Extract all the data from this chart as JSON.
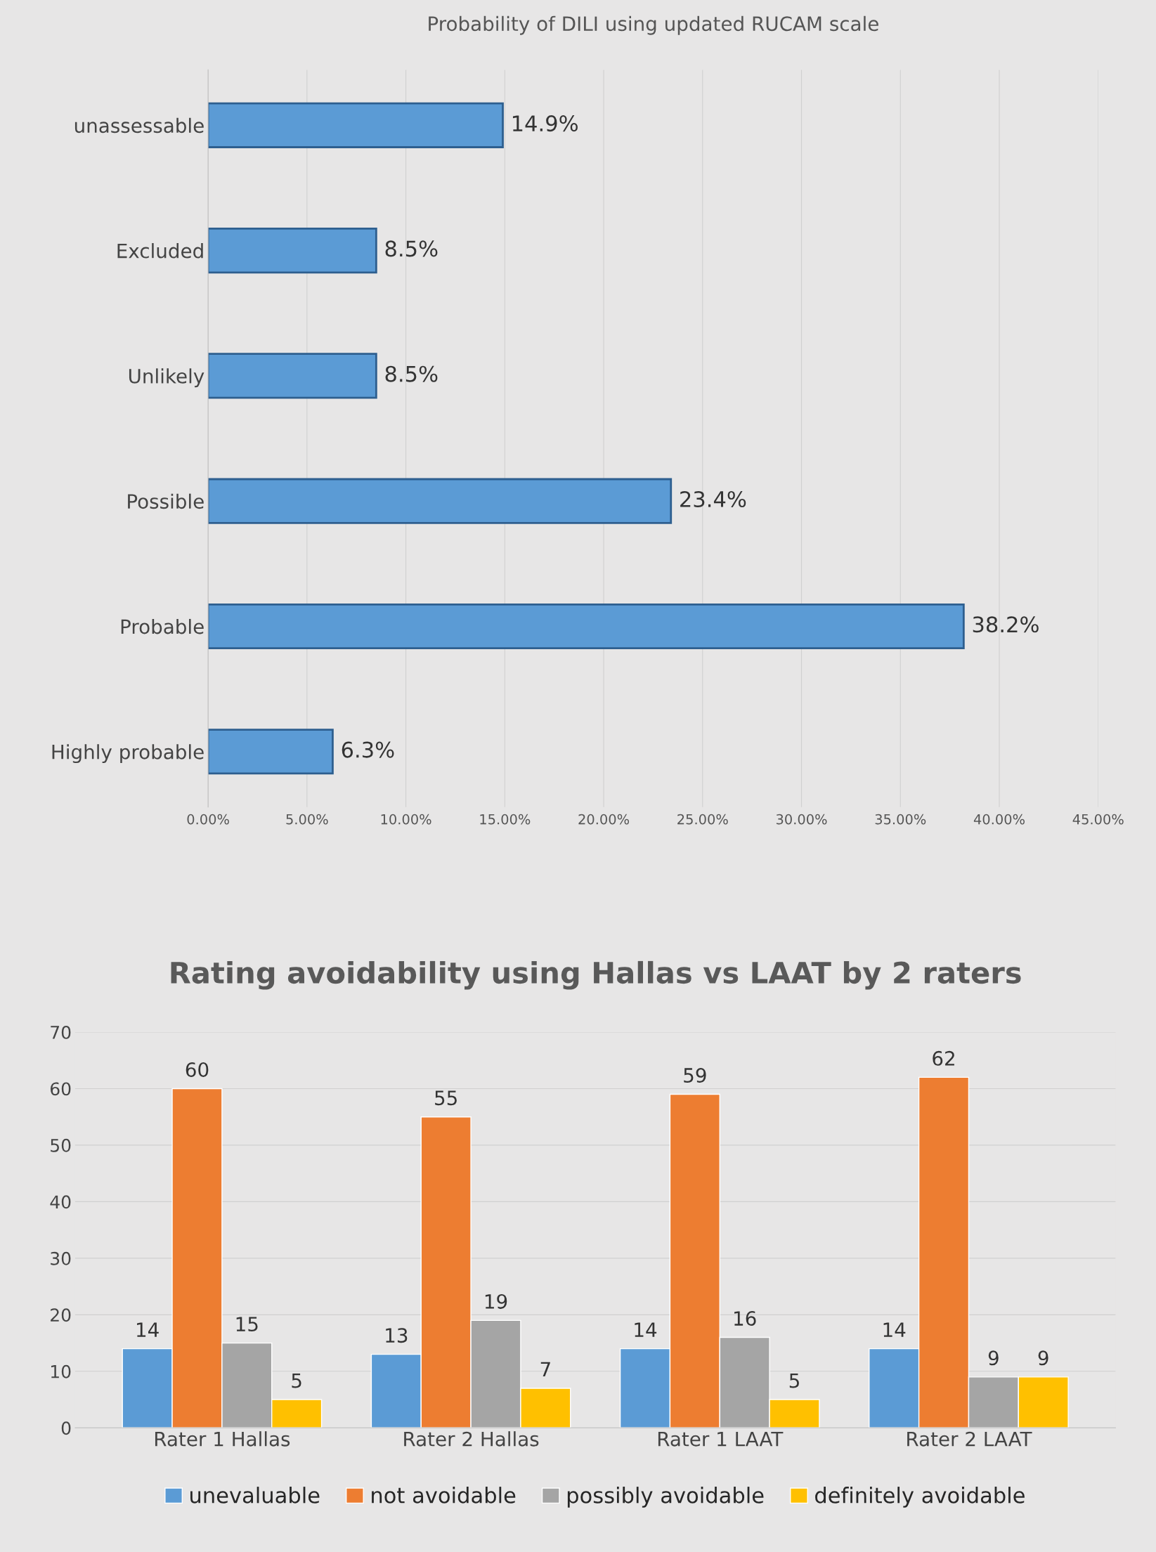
{
  "chart_data": [
    {
      "type": "bar",
      "title": "Probability of DILI using updated RUCAM scale",
      "orientation": "horizontal",
      "categories": [
        "unassessable",
        "Excluded",
        "Unlikely",
        "Possible",
        "Probable",
        "Highly probable"
      ],
      "values": [
        14.9,
        8.5,
        8.5,
        23.4,
        38.2,
        6.3
      ],
      "color": "#5b9bd5",
      "value_labels": [
        "14.9%",
        "8.5%",
        "8.5%",
        "23.4%",
        "38.2%",
        "6.3%"
      ],
      "xlim": [
        0,
        45
      ],
      "xticks": [
        {
          "value": 0,
          "label": "0.00%"
        },
        {
          "value": 5,
          "label": "5.00%"
        },
        {
          "value": 10,
          "label": "10.00%"
        },
        {
          "value": 15,
          "label": "15.00%"
        },
        {
          "value": 20,
          "label": "20.00%"
        },
        {
          "value": 25,
          "label": "25.00%"
        },
        {
          "value": 30,
          "label": "30.00%"
        },
        {
          "value": 35,
          "label": "35.00%"
        },
        {
          "value": 40,
          "label": "40.00%"
        },
        {
          "value": 45,
          "label": "45.00%"
        }
      ],
      "grid": "x",
      "legend": false
    },
    {
      "type": "bar",
      "title": "Rating avoidability using Hallas vs LAAT by 2 raters",
      "categories": [
        "Rater 1 Hallas",
        "Rater 2 Hallas",
        "Rater 1 LAAT",
        "Rater 2 LAAT"
      ],
      "series": [
        {
          "name": "unevaluable",
          "color": "#5b9bd5",
          "values": [
            14,
            13,
            14,
            14
          ]
        },
        {
          "name": "not avoidable",
          "color": "#ed7d31",
          "values": [
            60,
            55,
            59,
            62
          ]
        },
        {
          "name": "possibly avoidable",
          "color": "#a5a5a5",
          "values": [
            15,
            19,
            16,
            9
          ]
        },
        {
          "name": "definitely avoidable",
          "color": "#ffc000",
          "values": [
            5,
            7,
            5,
            9
          ]
        }
      ],
      "ylim": [
        0,
        70
      ],
      "yticks": [
        0,
        10,
        20,
        30,
        40,
        50,
        60,
        70
      ],
      "grid": "y",
      "legend": "bottom",
      "data_labels": true
    }
  ]
}
